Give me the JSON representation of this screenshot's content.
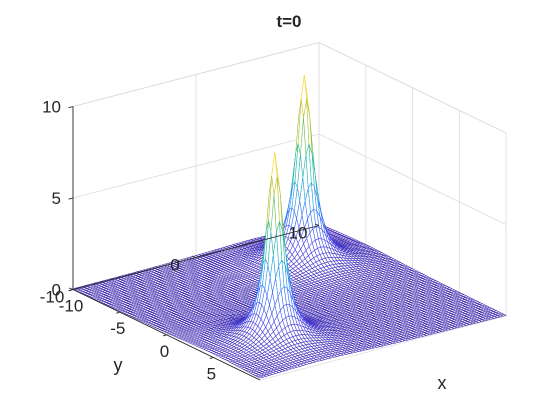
{
  "chart_data": {
    "type": "surface",
    "title": "t=0",
    "xlabel": "x",
    "ylabel": "y",
    "zlabel": "",
    "xlim": [
      -10,
      10
    ],
    "ylim": [
      -10,
      10
    ],
    "zlim": [
      0,
      10
    ],
    "xticks": [
      -10,
      -5,
      0,
      5
    ],
    "yticks": [
      -10,
      0,
      10
    ],
    "zticks": [
      0,
      5,
      10
    ],
    "xtick_labels": [
      "-10",
      "-5",
      "0",
      "5"
    ],
    "ytick_labels": [
      "-10",
      "0",
      "10"
    ],
    "ztick_labels": [
      "0",
      "5",
      "10"
    ],
    "grid": true,
    "colormap": "parula",
    "colormap_stops": [
      "#3e26a8",
      "#4746eb",
      "#2f75fd",
      "#1ea8da",
      "#23c08a",
      "#a6c02f",
      "#f0bb37",
      "#f9fb15"
    ],
    "peaks": [
      {
        "x": -5,
        "y": 5,
        "z": 10.3
      },
      {
        "x": 5,
        "y": -5,
        "z": 10.3
      }
    ]
  }
}
